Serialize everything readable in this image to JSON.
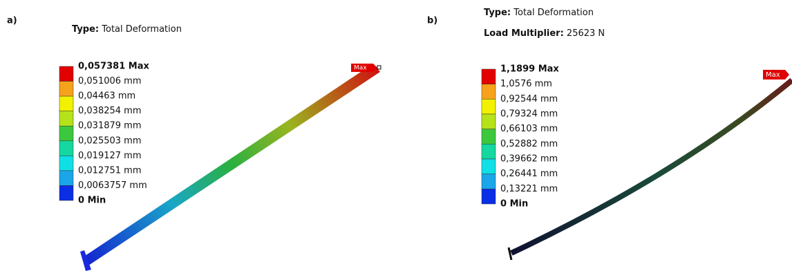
{
  "legend_colors": [
    "#e30000",
    "#f7a21b",
    "#f2f200",
    "#b6e21a",
    "#3cc83c",
    "#14d8a0",
    "#10e0e6",
    "#1aa6e8",
    "#0a2ee6"
  ],
  "panels": [
    {
      "label": "a)",
      "type_label": "Type:",
      "type_value": "Total Deformation",
      "legend": [
        "0,057381 Max",
        "0,051006 mm",
        "0,04463  mm",
        "0,038254 mm",
        "0,031879 mm",
        "0,025503 mm",
        "0,019127 mm",
        "0,012751 mm",
        "0,0063757 mm",
        "0 Min"
      ],
      "max_tag": "Max"
    },
    {
      "label": "b)",
      "type_label": "Type:",
      "type_value": "Total Deformation",
      "load_label": "Load Multiplier:",
      "load_value": "25623 N",
      "legend": [
        "1,1899 Max",
        "1,0576 mm",
        "0,92544 mm",
        "0,79324 mm",
        "0,66103 mm",
        "0,52882 mm",
        "0,39662 mm",
        "0,26441 mm",
        "0,13221 mm",
        "0 Min"
      ],
      "max_tag": "Max"
    }
  ]
}
